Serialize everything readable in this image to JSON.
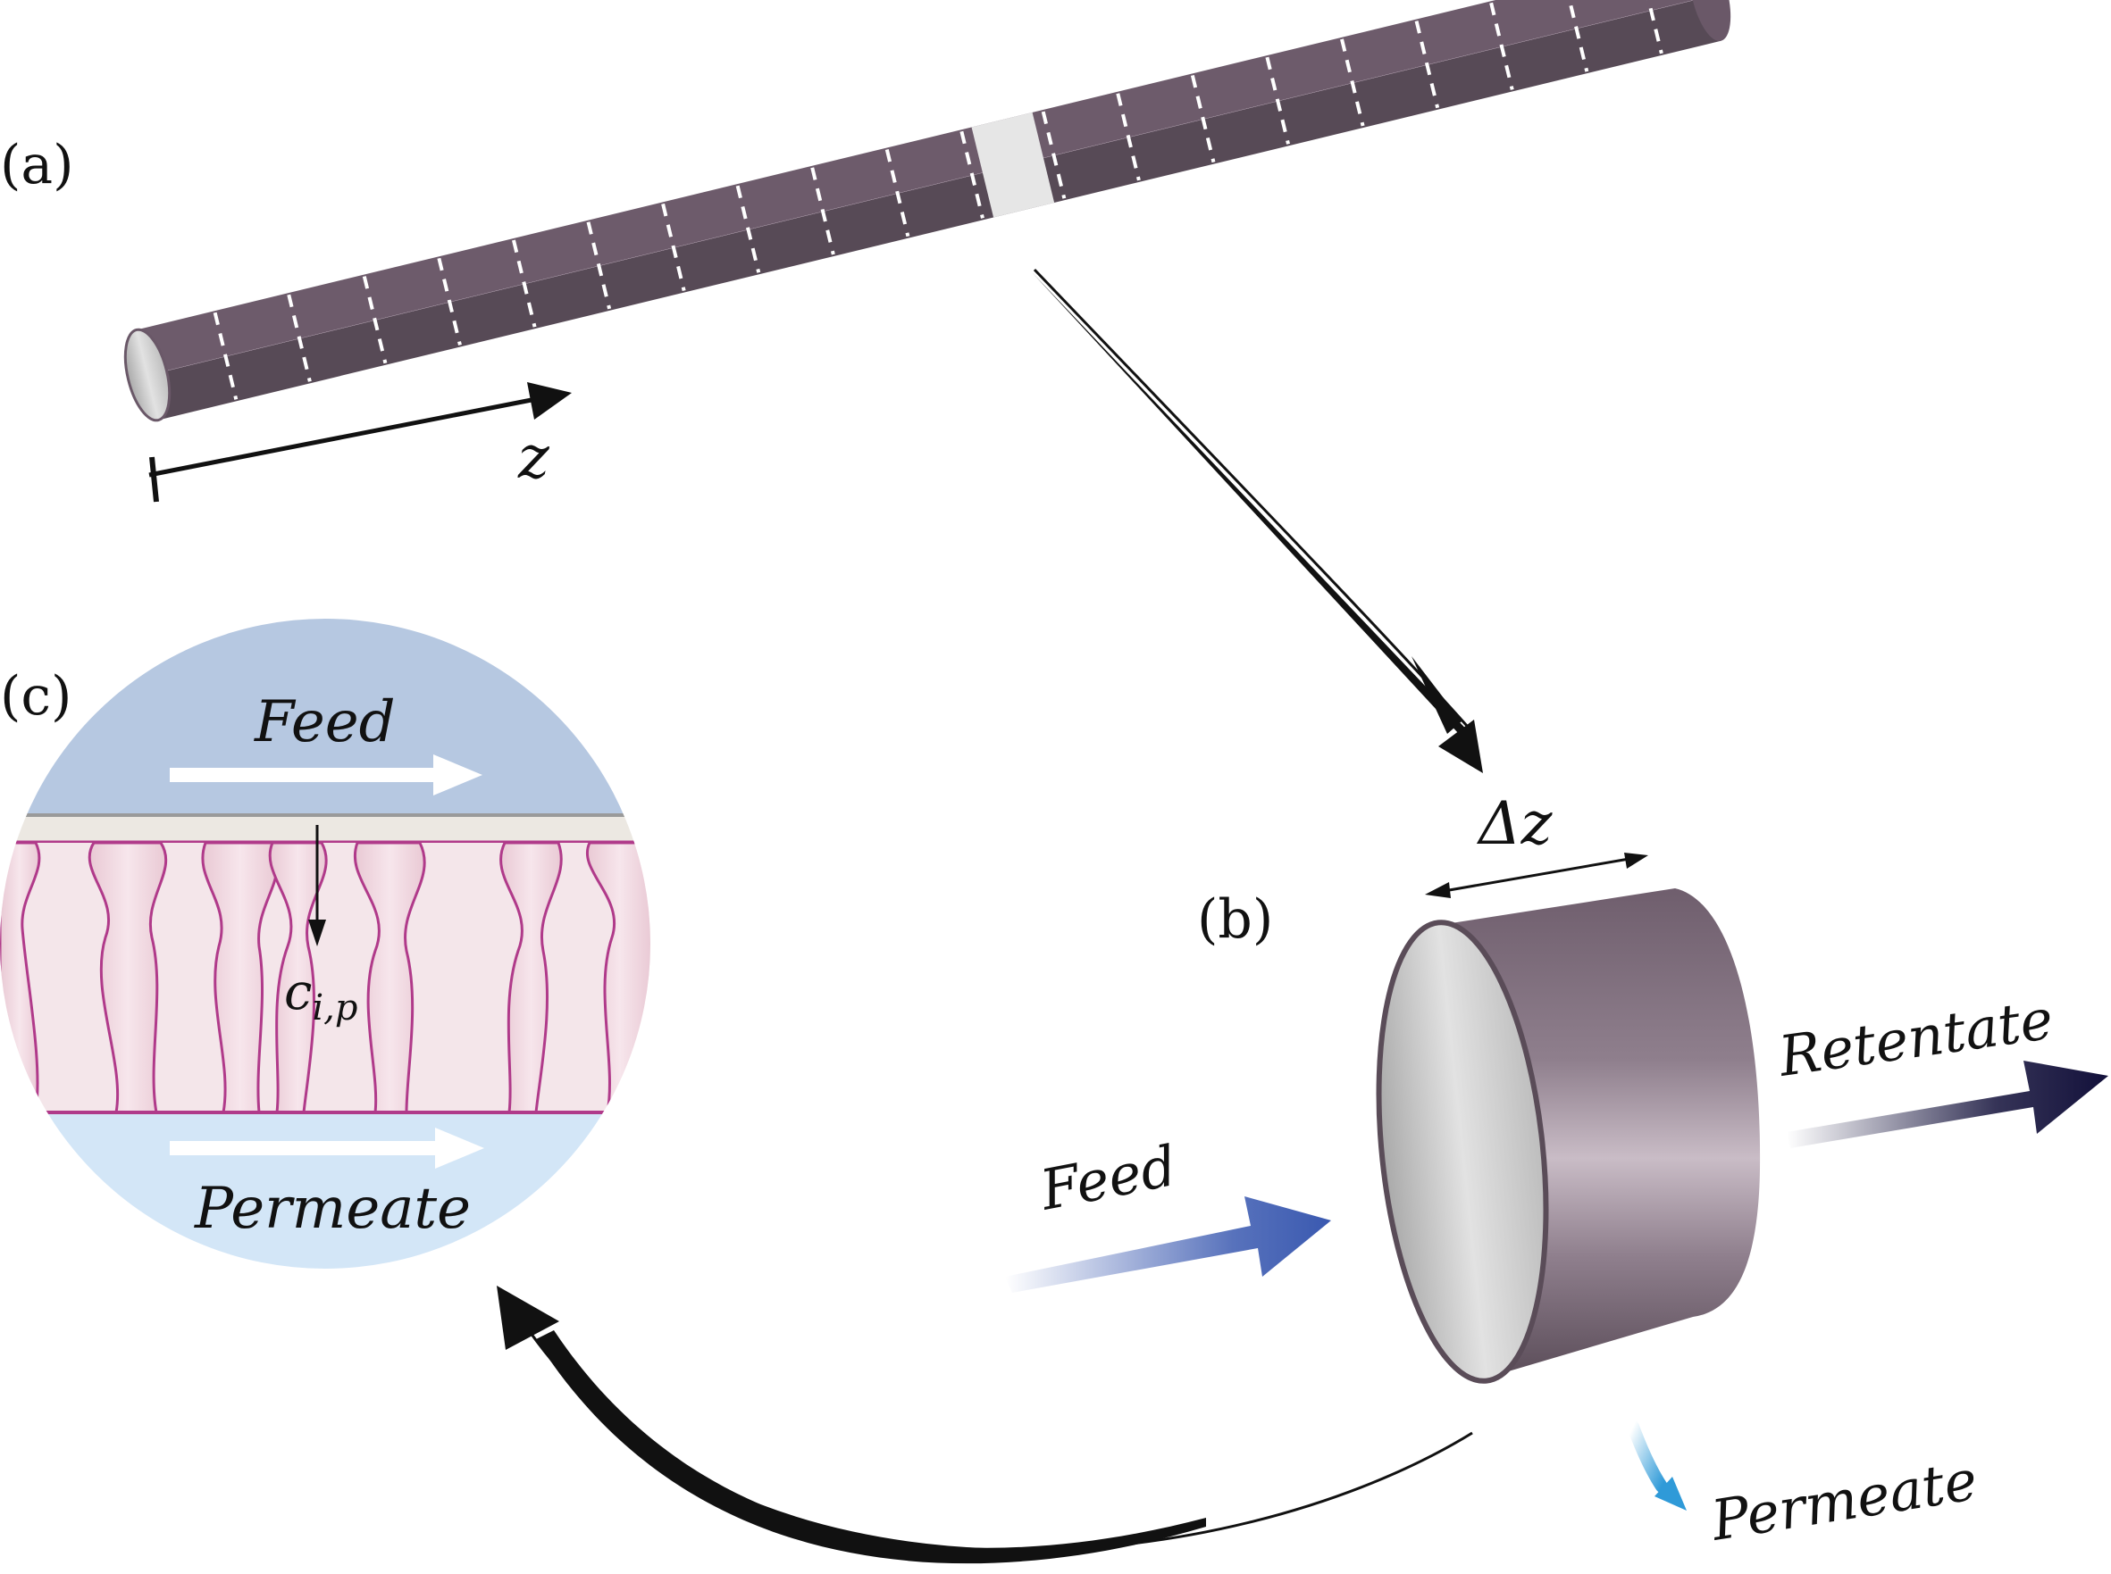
{
  "panels": {
    "a": {
      "label": "(a)",
      "axis_symbol": "z"
    },
    "b": {
      "label": "(b)",
      "delta_label": "Δz",
      "feed": "Feed",
      "retentate": "Retentate",
      "permeate": "Permeate"
    },
    "c": {
      "label": "(c)",
      "feed": "Feed",
      "permeate": "Permeate",
      "concentration": "c",
      "concentration_subscript": "i,p"
    }
  },
  "colors": {
    "tube": "#7d6a7a",
    "tube_highlight": "#c2b4c0",
    "tube_dark": "#574a56",
    "segment_band": "#e8e8e8",
    "feed_arrow": "#3a59b0",
    "retentate_arrow": "#12103a",
    "permeate_arrow": "#2f9ad8",
    "feed_zone": "#b6c8e1",
    "permeate_zone": "#d3e6f7",
    "membrane_pink": "#f0d2dc",
    "membrane_line": "#b03a8a"
  }
}
